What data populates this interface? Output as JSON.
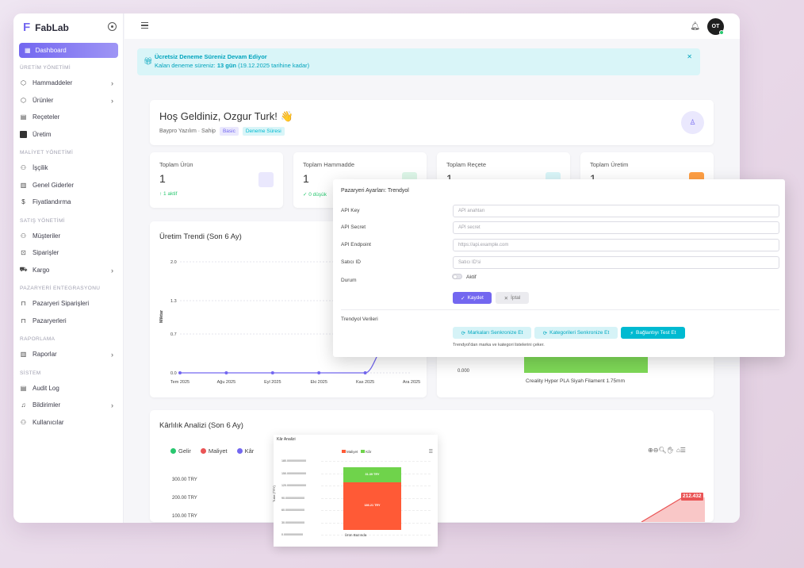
{
  "brand": {
    "logo": "F",
    "name": "FabLab"
  },
  "sidebar": {
    "active": {
      "label": "Dashboard"
    },
    "sections": {
      "uretim": "ÜRETİM YÖNETİMİ",
      "maliyet": "MALİYET YÖNETİMİ",
      "satis": "SATIŞ YÖNETİMİ",
      "pazar": "PAZARYERİ ENTEGRASYONU",
      "rapor": "RAPORLAMA",
      "sistem": "SİSTEM"
    },
    "items": {
      "hammaddeler": "Hammaddeler",
      "urunler": "Ürünler",
      "receteler": "Reçeteler",
      "uretim": "Üretim",
      "iscilik": "İşçilik",
      "genel": "Genel Giderler",
      "fiyat": "Fiyatlandırma",
      "musteriler": "Müşteriler",
      "siparisler": "Siparişler",
      "kargo": "Kargo",
      "pazar_siparis": "Pazaryeri Siparişleri",
      "pazaryerleri": "Pazaryerleri",
      "raporlar": "Raporlar",
      "audit": "Audit Log",
      "bildirimler": "Bildirimler",
      "kullanicilar": "Kullanıcılar"
    }
  },
  "topbar": {
    "avatar": "OT"
  },
  "alert": {
    "title": "Ücretsiz Deneme Süreniz Devam Ediyor",
    "line_prefix": "Kalan deneme süreniz: ",
    "days": "13 gün",
    "line_suffix": " (19.12.2025 tarihine kadar)"
  },
  "welcome": {
    "title": "Hoş Geldiniz, Ozgur Turk! 👋",
    "company": "Baypro Yazılım · Sahip",
    "badge_plan": "Basic",
    "badge_trial": "Deneme Süresi"
  },
  "stats": [
    {
      "label": "Toplam Ürün",
      "value": "1",
      "foot": "↑ 1 aktif",
      "color": "#7367f0",
      "bg": "#eae8fd"
    },
    {
      "label": "Toplam Hammadde",
      "value": "1",
      "foot": "✓ 0 düşük",
      "color": "#28c76f",
      "bg": "#ddf6e8"
    },
    {
      "label": "Toplam Reçete",
      "value": "1",
      "foot": "",
      "color": "#00bad1",
      "bg": "#d9f5f8"
    },
    {
      "label": "Toplam Üretim",
      "value": "1",
      "foot": "",
      "color": "#ff9f43",
      "bg": "#ff9f43"
    }
  ],
  "trend": {
    "title": "Üretim Trendi (Son 6 Ay)",
    "ylabel": "Miktar"
  },
  "right_card": {
    "ytick": "0.000",
    "category": "Creality Hyper PLA Siyah Filament 1.75mm"
  },
  "profit": {
    "title": "Kârlılık Analizi (Son 6 Ay)",
    "legend": [
      "Gelir",
      "Maliyet",
      "Kâr"
    ],
    "legend_colors": [
      "#28c76f",
      "#ea5455",
      "#7367f0"
    ],
    "yticks": [
      "300.00 TRY",
      "200.00 TRY",
      "100.00 TRY"
    ],
    "peak_label": "212.432"
  },
  "modal": {
    "title": "Pazaryeri Ayarları: Trendyol",
    "fields": [
      {
        "label": "API Key",
        "placeholder": "API anahtarı"
      },
      {
        "label": "API Secret",
        "placeholder": "API secret"
      },
      {
        "label": "API Endpoint",
        "placeholder": "https://api.example.com"
      },
      {
        "label": "Satıcı ID",
        "placeholder": "Satıcı ID'si"
      }
    ],
    "status_label": "Durum",
    "toggle_label": "Aktif",
    "save": "Kaydet",
    "cancel": "İptal",
    "section": "Trendyol Verileri",
    "sync_brands": "Markaları Senkronize Et",
    "sync_categories": "Kategorileri Senkronize Et",
    "test": "Bağlantıyı Test Et",
    "hint": "Trendyol'dan marka ve kategori listelerini çeker."
  },
  "mini": {
    "title": "Kâr Analizi",
    "legend": [
      "Maliyet",
      "Kâr"
    ],
    "yticks": [
      "180.000000000000",
      "150.000000000000",
      "120.000000000000",
      "90.000000000000",
      "60.000000000000",
      "30.000000000000",
      "0.000000000000"
    ],
    "ylabel": "Tutar (TRY)",
    "xlabel": "Ürün Bazında",
    "bar_cost_label": "186.21 TRY",
    "bar_profit_label": "31.39 TRY"
  },
  "chart_data": {
    "type": "line",
    "title": "Üretim Trendi (Son 6 Ay)",
    "ylabel": "Miktar",
    "categories": [
      "Tem 2025",
      "Ağu 2025",
      "Eyl 2025",
      "Eki 2025",
      "Kas 2025",
      "Ara 2025"
    ],
    "yticks": [
      "0.0",
      "0.7",
      "1.3",
      "2.0"
    ],
    "ylim": [
      0,
      2
    ],
    "series": [
      {
        "values": [
          0,
          0,
          0,
          0,
          0,
          1
        ]
      }
    ]
  }
}
